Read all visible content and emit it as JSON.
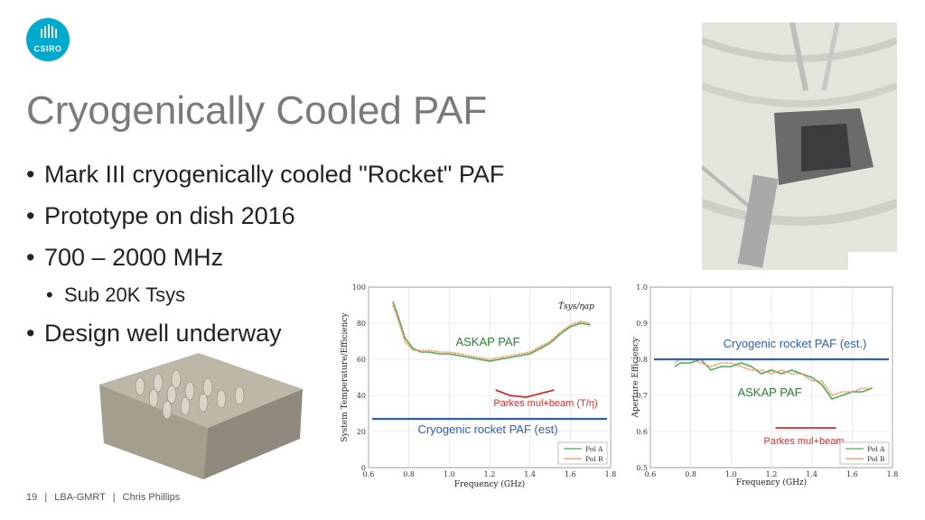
{
  "logo": {
    "text": "CSIRO"
  },
  "title": "Cryogenically Cooled PAF",
  "bullets": [
    "Mark III cryogenically cooled \"Rocket\" PAF",
    "Prototype on dish 2016",
    "700 – 2000 MHz",
    "Sub 20K Tsys",
    "Design well underway"
  ],
  "footer": {
    "page": "19",
    "event": "LBA-GMRT",
    "author": "Chris Phillips",
    "sep": "|"
  },
  "colors": {
    "accent": "#00a9ce",
    "title": "#7a7a7a",
    "askap_label": "#2e7d32",
    "blue_line": "#2f5fb3",
    "red_line": "#d32f2f"
  },
  "chart_data": [
    {
      "type": "line",
      "ylabel": "System Temperature/Efficiency",
      "xlabel": "Frequency (GHz)",
      "xlim": [
        0.6,
        1.8
      ],
      "ylim": [
        0,
        100
      ],
      "xticks": [
        "0.6",
        "0.8",
        "1.0",
        "1.2",
        "1.4",
        "1.6",
        "1.8"
      ],
      "yticks": [
        "0",
        "20",
        "40",
        "60",
        "80",
        "100"
      ],
      "inline_label": "T̂sys/ηap",
      "legend": [
        "Pol A",
        "Pol B"
      ],
      "series": [
        {
          "name": "Pol A",
          "x": [
            0.72,
            0.74,
            0.78,
            0.82,
            0.86,
            0.9,
            0.95,
            1.0,
            1.05,
            1.1,
            1.15,
            1.2,
            1.25,
            1.3,
            1.35,
            1.4,
            1.45,
            1.5,
            1.55,
            1.6,
            1.65,
            1.7
          ],
          "values": [
            92,
            86,
            72,
            66,
            64,
            64,
            63,
            63,
            62,
            61,
            60,
            59,
            60,
            61,
            62,
            63,
            66,
            69,
            74,
            78,
            80,
            79
          ]
        },
        {
          "name": "Pol B",
          "x": [
            0.72,
            0.74,
            0.78,
            0.82,
            0.86,
            0.9,
            0.95,
            1.0,
            1.05,
            1.1,
            1.15,
            1.2,
            1.25,
            1.3,
            1.35,
            1.4,
            1.45,
            1.5,
            1.55,
            1.6,
            1.65,
            1.7
          ],
          "values": [
            90,
            84,
            70,
            65,
            65,
            65,
            64,
            64,
            63,
            62,
            61,
            60,
            61,
            62,
            63,
            64,
            67,
            70,
            75,
            79,
            81,
            80
          ]
        }
      ],
      "annotations": {
        "askap": "ASKAP PAF",
        "parkes": "Parkes mul+beam (T/η)",
        "cryo": "Cryogenic rocket PAF (est)"
      },
      "parkes_curve": {
        "x": [
          1.23,
          1.3,
          1.38,
          1.45,
          1.52
        ],
        "values": [
          43,
          40,
          39,
          41,
          43
        ]
      },
      "cryo_level": 27
    },
    {
      "type": "line",
      "ylabel": "Aperture Efficiency",
      "xlabel": "Frequency (GHz)",
      "xlim": [
        0.6,
        1.8
      ],
      "ylim": [
        0.5,
        1.0
      ],
      "xticks": [
        "0.6",
        "0.8",
        "1.0",
        "1.2",
        "1.4",
        "1.6",
        "1.8"
      ],
      "yticks": [
        "0.5",
        "0.6",
        "0.7",
        "0.8",
        "0.9",
        "1.0"
      ],
      "legend": [
        "Pol A",
        "Pol B"
      ],
      "series": [
        {
          "name": "Pol A",
          "x": [
            0.72,
            0.75,
            0.8,
            0.85,
            0.9,
            0.95,
            1.0,
            1.05,
            1.1,
            1.15,
            1.2,
            1.25,
            1.3,
            1.35,
            1.4,
            1.45,
            1.5,
            1.55,
            1.6,
            1.65,
            1.7
          ],
          "values": [
            0.78,
            0.79,
            0.79,
            0.8,
            0.77,
            0.78,
            0.78,
            0.79,
            0.78,
            0.76,
            0.77,
            0.76,
            0.77,
            0.76,
            0.75,
            0.73,
            0.69,
            0.7,
            0.71,
            0.71,
            0.72
          ]
        },
        {
          "name": "Pol B",
          "x": [
            0.72,
            0.75,
            0.8,
            0.85,
            0.9,
            0.95,
            1.0,
            1.05,
            1.1,
            1.15,
            1.2,
            1.25,
            1.3,
            1.35,
            1.4,
            1.45,
            1.5,
            1.55,
            1.6,
            1.65,
            1.7
          ],
          "values": [
            0.79,
            0.8,
            0.8,
            0.79,
            0.78,
            0.79,
            0.79,
            0.78,
            0.77,
            0.77,
            0.76,
            0.77,
            0.76,
            0.76,
            0.74,
            0.74,
            0.7,
            0.71,
            0.71,
            0.72,
            0.72
          ]
        }
      ],
      "annotations": {
        "askap": "ASKAP PAF",
        "parkes": "Parkes mul+beam",
        "cryo": "Cryogenic rocket PAF (est.)"
      },
      "parkes_level": 0.61,
      "parkes_range": [
        1.22,
        1.52
      ],
      "cryo_level": 0.8
    }
  ]
}
